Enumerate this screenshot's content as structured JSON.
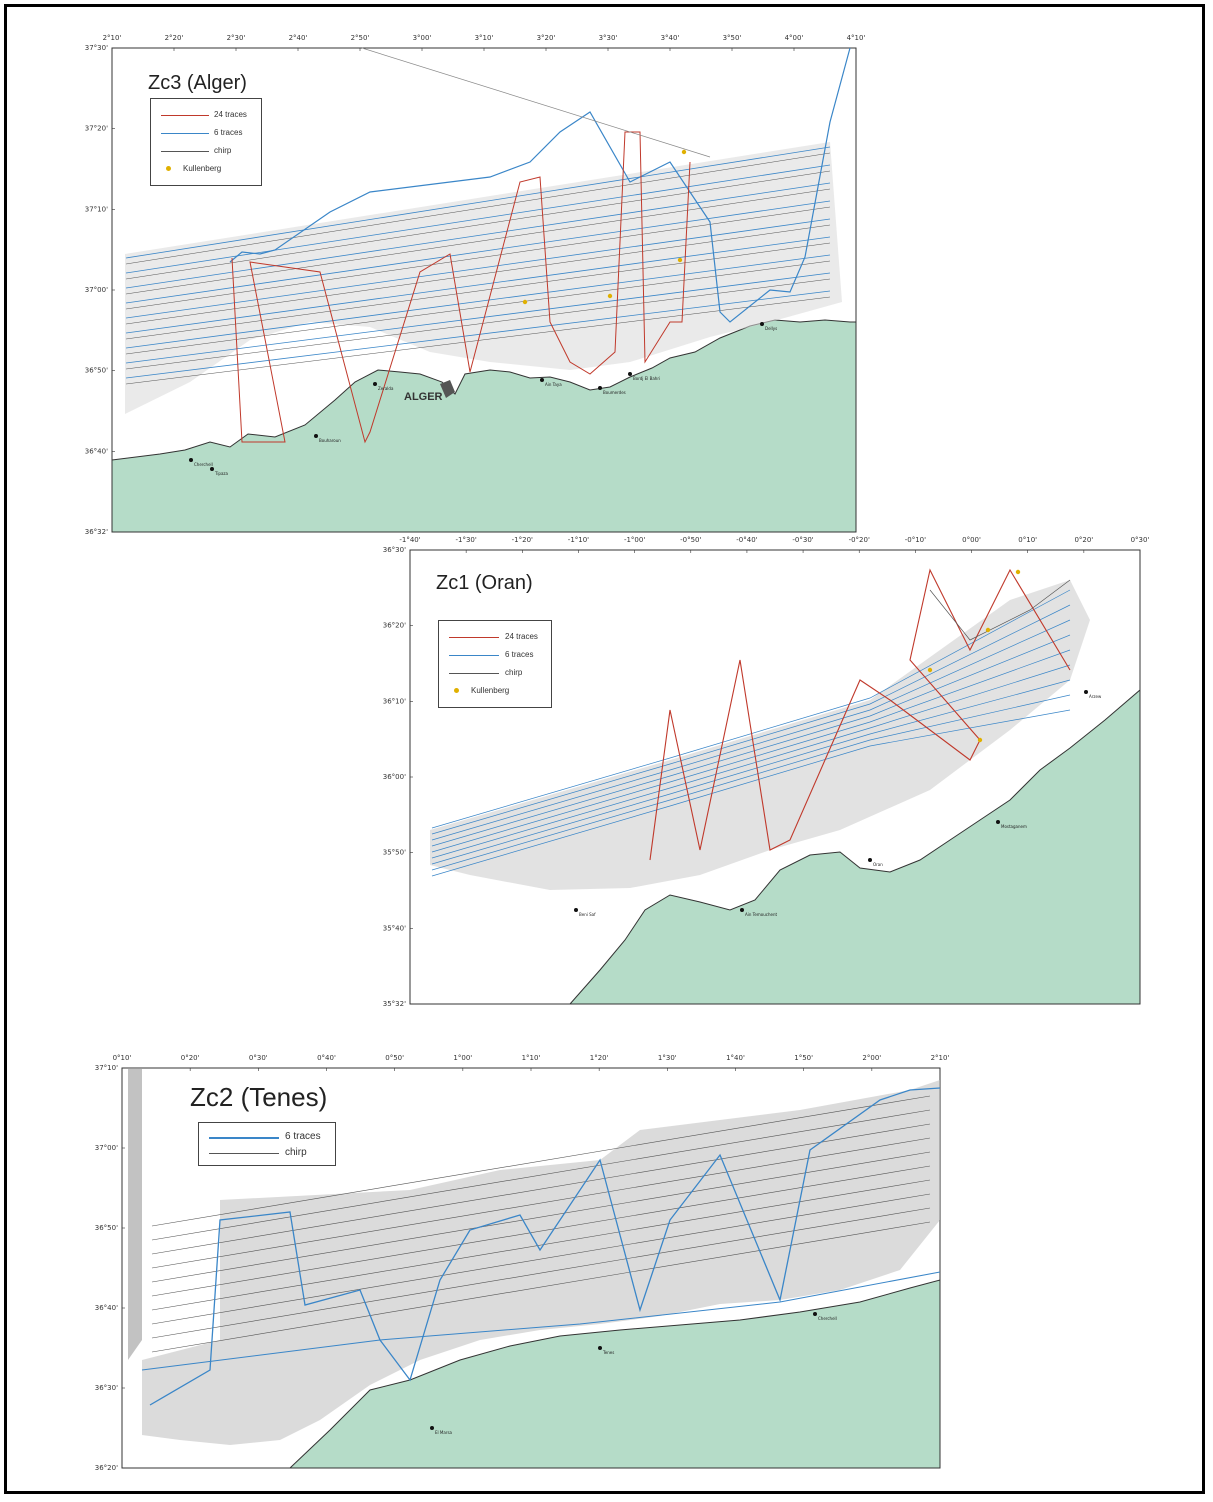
{
  "colors": {
    "land": "#b5dcc8",
    "coast": "#333333",
    "trace24": "#c0392b",
    "trace6": "#3a86c8",
    "chirp": "#555555",
    "kullenberg": "#e0b000",
    "swath": "#cfcfcf"
  },
  "panels": {
    "alger": {
      "title": "Zc3 (Alger)",
      "lon_ticks": [
        "2°10'",
        "2°20'",
        "2°30'",
        "2°40'",
        "2°50'",
        "3°00'",
        "3°10'",
        "3°20'",
        "3°30'",
        "3°40'",
        "3°50'",
        "4°00'",
        "4°10'"
      ],
      "lat_ticks": [
        "37°30'",
        "37°20'",
        "37°10'",
        "37°00'",
        "36°50'",
        "36°40'",
        "36°32'"
      ],
      "legend": [
        "24 traces",
        "6 traces",
        "chirp",
        "Kullenberg"
      ],
      "city": "ALGER",
      "places": [
        "Zeralda",
        "Bouharoun",
        "Tipaza",
        "Cherchell",
        "Ain Taya",
        "Bordj El Bahri",
        "Boumerdes",
        "Dellys"
      ]
    },
    "oran": {
      "title": "Zc1 (Oran)",
      "lon_ticks": [
        "-1°40'",
        "-1°30'",
        "-1°20'",
        "-1°10'",
        "-1°00'",
        "-0°50'",
        "-0°40'",
        "-0°30'",
        "-0°20'",
        "-0°10'",
        "0°00'",
        "0°10'",
        "0°20'",
        "0°30'"
      ],
      "lat_ticks": [
        "36°30'",
        "36°20'",
        "36°10'",
        "36°00'",
        "35°50'",
        "35°40'",
        "35°32'"
      ],
      "legend": [
        "24 traces",
        "6 traces",
        "chirp",
        "Kullenberg"
      ],
      "places": [
        "Oran",
        "Mostaganem",
        "Arzew",
        "Beni Saf",
        "Ain Temouchent"
      ]
    },
    "tenes": {
      "title": "Zc2 (Tenes)",
      "lon_ticks": [
        "0°10'",
        "0°20'",
        "0°30'",
        "0°40'",
        "0°50'",
        "1°00'",
        "1°10'",
        "1°20'",
        "1°30'",
        "1°40'",
        "1°50'",
        "2°00'",
        "2°10'"
      ],
      "lat_ticks": [
        "37°10'",
        "37°00'",
        "36°50'",
        "36°40'",
        "36°30'",
        "36°20'"
      ],
      "legend": [
        "6 traces",
        "chirp"
      ],
      "places": [
        "El Marsa",
        "Tenes",
        "Cherchell"
      ]
    }
  }
}
